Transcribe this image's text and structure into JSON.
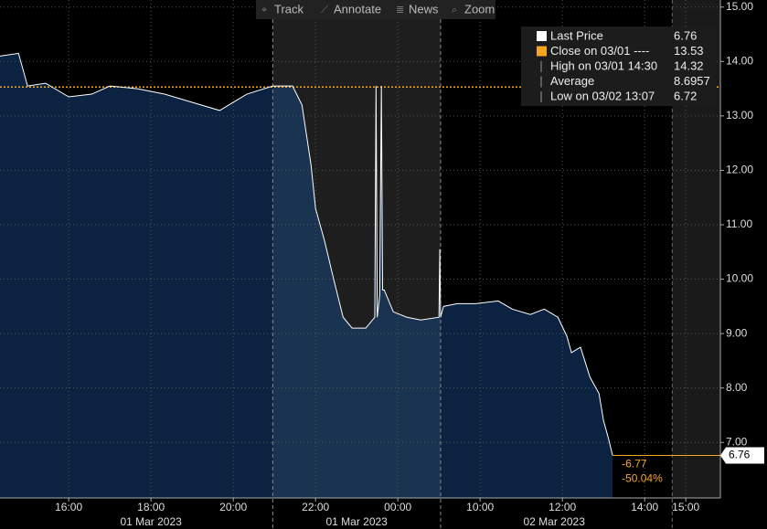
{
  "toolbar": [
    "Track",
    "Annotate",
    "News",
    "Zoom"
  ],
  "chart_data": {
    "type": "line",
    "x": [
      0.33,
      0.78,
      1.0,
      1.44,
      2.0,
      2.56,
      3.0,
      3.67,
      4.33,
      5.0,
      5.67,
      6.0,
      6.33,
      6.96,
      7.44,
      7.67,
      7.89,
      8.0,
      8.22,
      8.44,
      8.67,
      8.89,
      9.22,
      9.44,
      9.47,
      9.5,
      9.56,
      9.6,
      9.63,
      9.67,
      9.89,
      10.22,
      10.56,
      11.0,
      11.02,
      11.04,
      11.11,
      11.44,
      11.89,
      12.44,
      12.78,
      13.22,
      13.56,
      13.89,
      14.11,
      14.22,
      14.44,
      14.67,
      14.89,
      15.0,
      15.11,
      15.22
    ],
    "series": [
      {
        "name": "Last Price",
        "color": "#ffffff",
        "values": [
          14.1,
          14.15,
          13.55,
          13.6,
          13.35,
          13.4,
          13.55,
          13.5,
          13.4,
          13.25,
          13.1,
          13.25,
          13.4,
          13.55,
          13.55,
          13.2,
          12.1,
          11.3,
          10.7,
          10.0,
          9.3,
          9.1,
          9.1,
          9.3,
          13.55,
          9.3,
          9.7,
          13.55,
          9.8,
          9.8,
          9.4,
          9.3,
          9.25,
          9.3,
          10.55,
          9.3,
          9.5,
          9.55,
          9.55,
          9.6,
          9.45,
          9.35,
          9.45,
          9.3,
          8.95,
          8.65,
          8.75,
          8.2,
          7.9,
          7.4,
          7.1,
          6.76
        ]
      }
    ],
    "xlim": [
      0.33,
      17.84
    ],
    "xticks": [
      {
        "value": 2,
        "label": "16:00"
      },
      {
        "value": 4,
        "label": "18:00"
      },
      {
        "value": 6,
        "label": "20:00"
      },
      {
        "value": 8,
        "label": "22:00"
      },
      {
        "value": 10,
        "label": "00:00"
      },
      {
        "value": 12,
        "label": "10:00"
      },
      {
        "value": 14,
        "label": "12:00"
      },
      {
        "value": 16,
        "label": "14:00"
      },
      {
        "value": 17,
        "label": "15:00"
      }
    ],
    "date_labels": [
      {
        "value": 4,
        "label": "01 Mar 2023"
      },
      {
        "value": 9,
        "label": "01 Mar 2023"
      },
      {
        "value": 13.8,
        "label": "02 Mar 2023"
      }
    ],
    "shaded_ranges": [
      [
        6.96,
        11.04
      ],
      [
        16.67,
        17.84
      ]
    ],
    "ylim": [
      5.98,
      15.13
    ],
    "yticks": [
      {
        "value": 7,
        "label": "7.00"
      },
      {
        "value": 8,
        "label": "8.00"
      },
      {
        "value": 9,
        "label": "9.00"
      },
      {
        "value": 10,
        "label": "10.00"
      },
      {
        "value": 11,
        "label": "11.00"
      },
      {
        "value": 12,
        "label": "12.00"
      },
      {
        "value": 13,
        "label": "13.00"
      },
      {
        "value": 14,
        "label": "14.00"
      },
      {
        "value": 15,
        "label": "15.00"
      }
    ],
    "grid": true,
    "legend": [
      {
        "label": "Last Price",
        "value": 6.76,
        "color": "#ffffff"
      },
      {
        "label": "Close on 03/01 ----",
        "value": 13.53,
        "color": "#f5a623"
      },
      {
        "label": "High on 03/01 14:30",
        "value": 14.32
      },
      {
        "label": "Average",
        "value": 8.6957
      },
      {
        "label": "Low on 03/02 13:07",
        "value": 6.72
      }
    ],
    "change": -6.77,
    "change_pct": {
      "value": -50.04,
      "label": "-50.04%"
    }
  }
}
